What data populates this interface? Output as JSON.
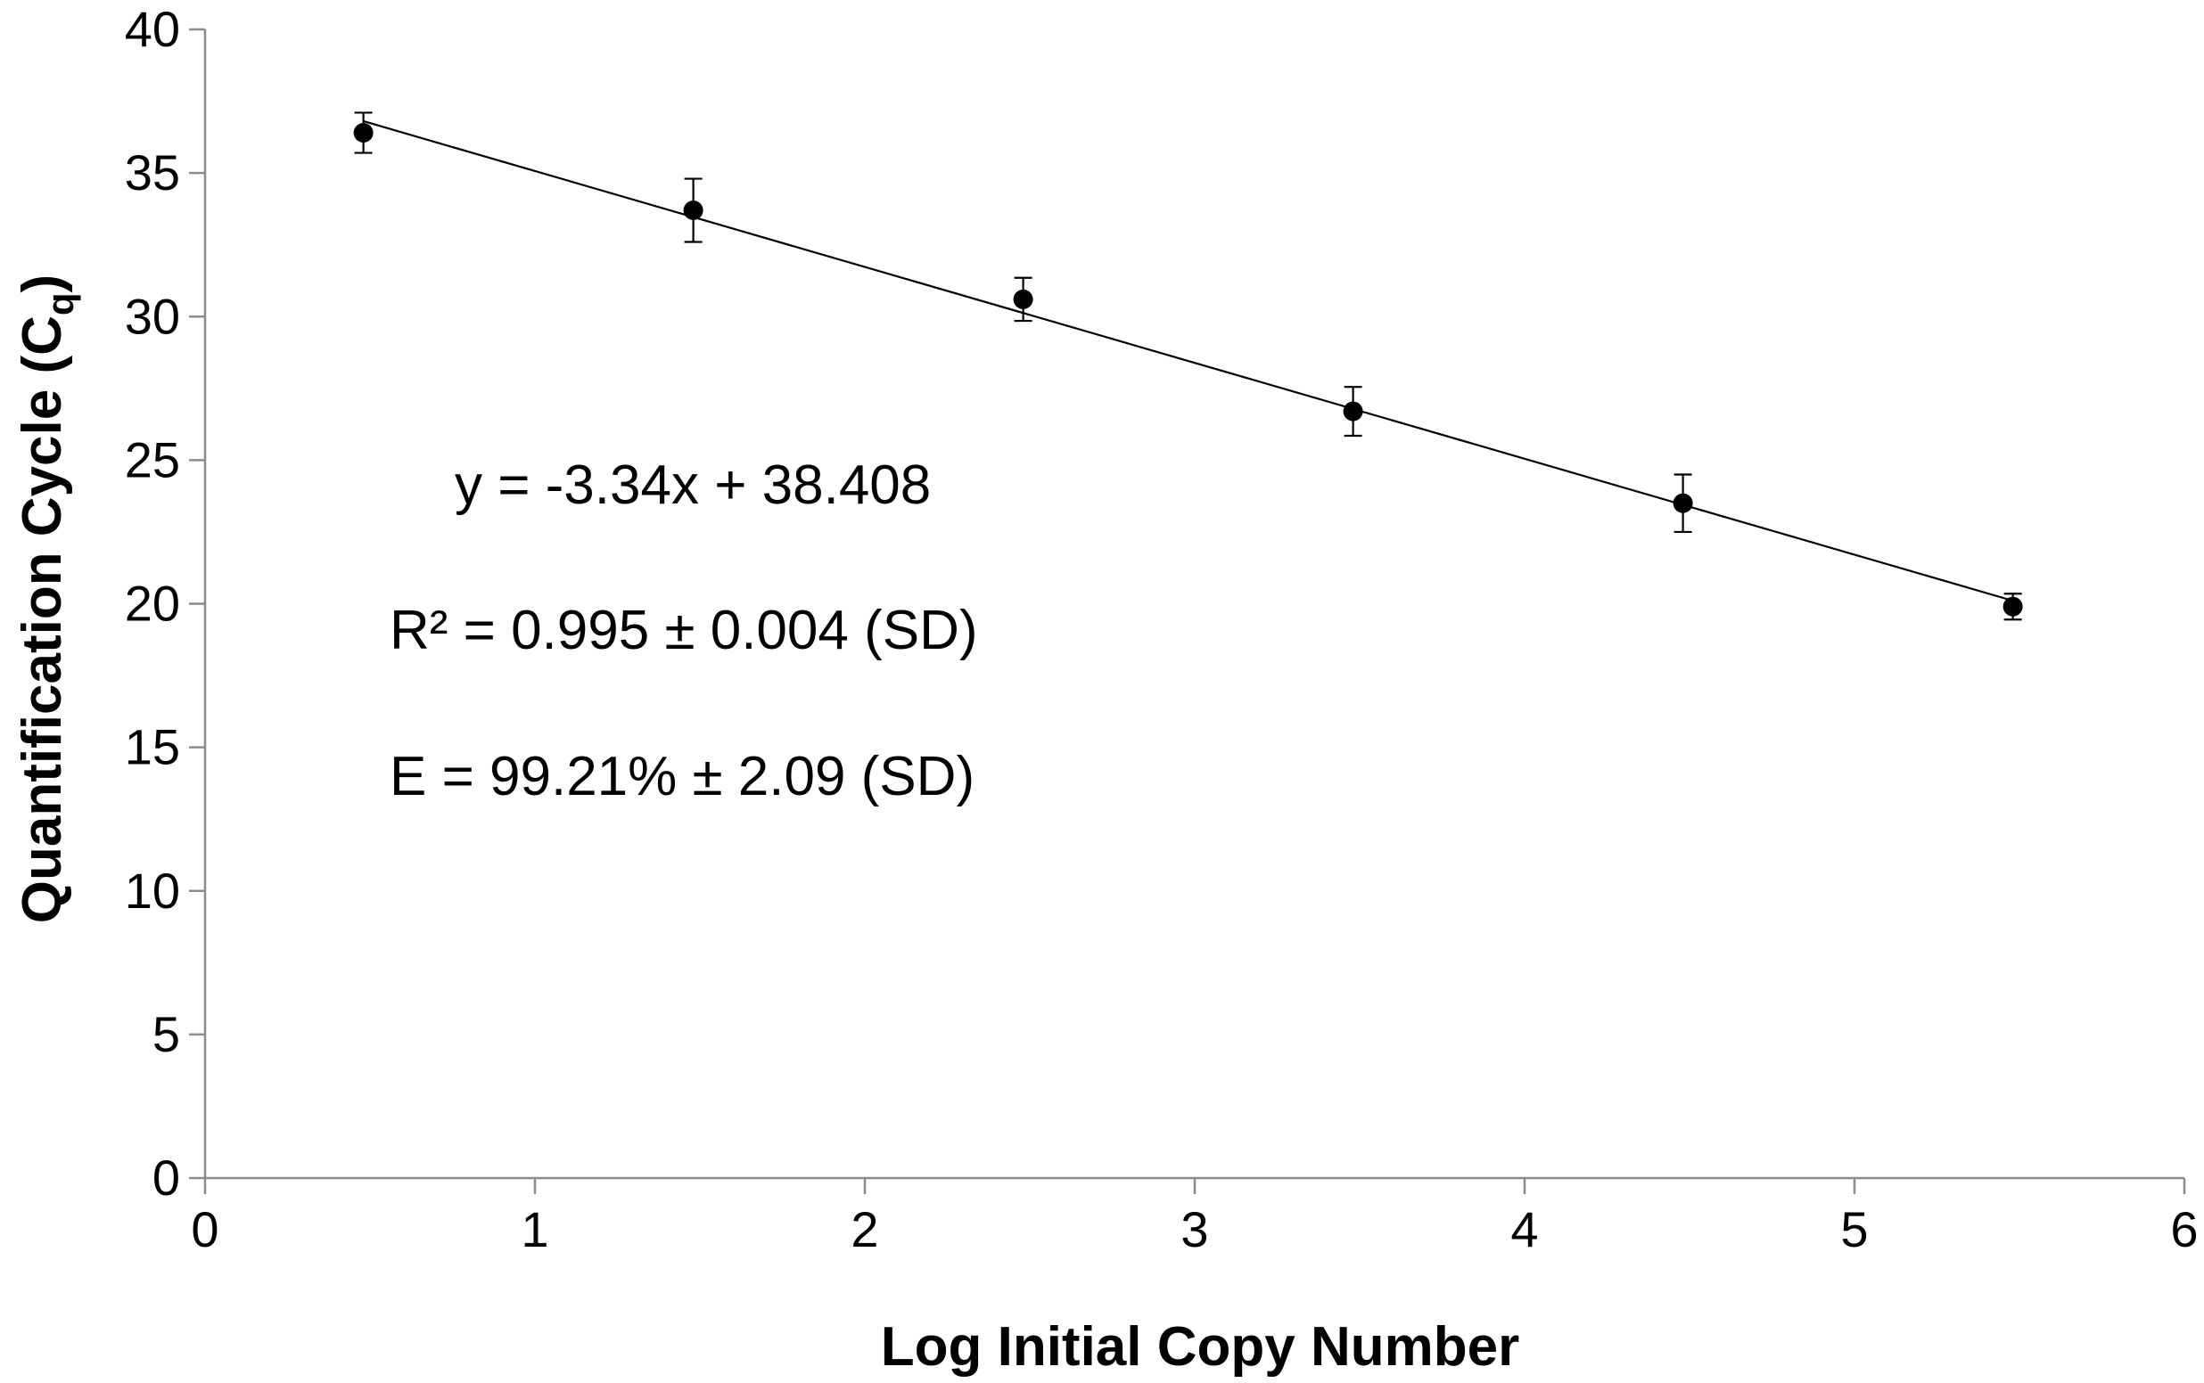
{
  "chart_data": {
    "type": "scatter",
    "xlabel": "Log Initial Copy Number",
    "ylabel_main": "Quantification Cycle (C",
    "ylabel_sub": "q",
    "ylabel_close": ")",
    "xlim": [
      0,
      6
    ],
    "ylim": [
      0,
      40
    ],
    "x_ticks": [
      0,
      1,
      2,
      3,
      4,
      5,
      6
    ],
    "y_ticks": [
      0,
      5,
      10,
      15,
      20,
      25,
      30,
      35,
      40
    ],
    "grid": false,
    "legend": "none",
    "points": [
      {
        "x": 0.48,
        "y": 36.4,
        "err": 0.7
      },
      {
        "x": 1.48,
        "y": 33.7,
        "err": 1.1
      },
      {
        "x": 2.48,
        "y": 30.6,
        "err": 0.75
      },
      {
        "x": 3.48,
        "y": 26.7,
        "err": 0.85
      },
      {
        "x": 4.48,
        "y": 23.5,
        "err": 1.0
      },
      {
        "x": 5.48,
        "y": 19.9,
        "err": 0.45
      }
    ],
    "trendline": {
      "slope": -3.34,
      "intercept": 38.408,
      "x_start": 0.48,
      "x_end": 5.48
    },
    "annotations": {
      "equation": "y = -3.34x + 38.408",
      "r_squared": "R² = 0.995 ± 0.004 (SD)",
      "efficiency": "E = 99.21% ± 2.09 (SD)"
    },
    "colors": {
      "marker": "#000000",
      "line": "#000000",
      "axis": "#8c8c8c"
    }
  }
}
